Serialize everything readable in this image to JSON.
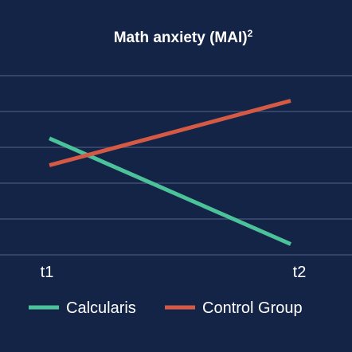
{
  "chart_data": {
    "type": "line",
    "title": "Math anxiety (MAI)",
    "title_superscript": "2",
    "x": [
      "t1",
      "t2"
    ],
    "ylim": [
      0,
      5
    ],
    "grid": true,
    "legend_placement": "bottom",
    "series": [
      {
        "name": "Calcularis",
        "values": [
          3.25,
          0.3
        ],
        "color": "#4cc29a"
      },
      {
        "name": "Control Group",
        "values": [
          2.5,
          4.3
        ],
        "color": "#d55a45"
      }
    ],
    "gridline_color": "#3f4f73",
    "background_color": "#142446"
  }
}
